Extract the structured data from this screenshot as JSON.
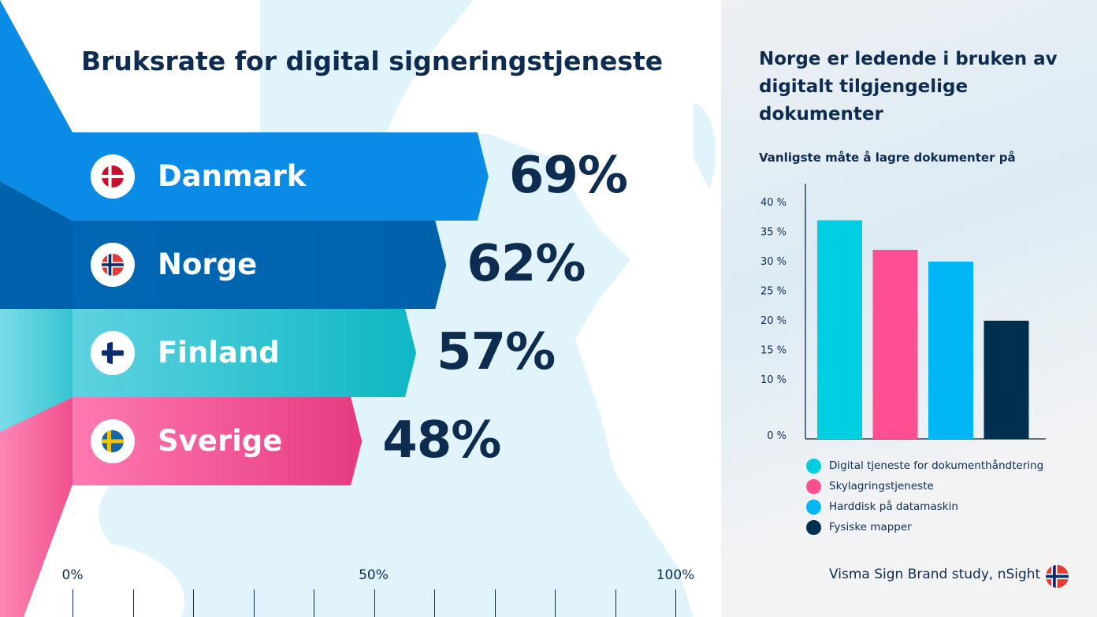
{
  "left": {
    "title": "Bruksrate for digital signeringstjeneste",
    "axis_ticks": [
      "0%",
      "50%",
      "100%"
    ],
    "countries": [
      {
        "name": "Danmark",
        "value": 69,
        "label": "69%",
        "color": "#0a8ce6",
        "flag": "denmark-flag"
      },
      {
        "name": "Norge",
        "value": 62,
        "label": "62%",
        "color": "#0066b3",
        "flag": "norway-flag"
      },
      {
        "name": "Finland",
        "value": 57,
        "label": "57%",
        "color": "#2cc0cc",
        "flag": "finland-flag"
      },
      {
        "name": "Sverige",
        "value": 48,
        "label": "48%",
        "color": "#f0538f",
        "flag": "sweden-flag"
      }
    ]
  },
  "right": {
    "title": "Norge er ledende i bruken av digitalt tilgjengelige dokumenter",
    "source": "Visma Sign Brand study, nSight",
    "source_flag": "norway-flag"
  },
  "chart_data": [
    {
      "type": "bar",
      "title": "Bruksrate for digital signeringstjeneste",
      "categories": [
        "Danmark",
        "Norge",
        "Finland",
        "Sverige"
      ],
      "values": [
        69,
        62,
        57,
        48
      ],
      "data_labels": [
        "69%",
        "62%",
        "57%",
        "48%"
      ],
      "orientation": "horizontal",
      "xlim": [
        0,
        100
      ],
      "x_tick_labels": [
        "0%",
        "50%",
        "100%"
      ]
    },
    {
      "type": "bar",
      "title": "Vanligste måte å lagre dokumenter på",
      "categories": [
        "Digital tjeneste for dokumenthåndtering",
        "Skylagringstjeneste",
        "Harddisk på datamaskin",
        "Fysiske mapper"
      ],
      "values": [
        37,
        32,
        30,
        20
      ],
      "colors": [
        "#00cfe3",
        "#ff4f93",
        "#00b6f5",
        "#00304f"
      ],
      "ylim": [
        0,
        40
      ],
      "y_ticks": [
        0,
        10,
        15,
        20,
        25,
        30,
        35,
        40
      ],
      "y_tick_labels": [
        "0 %",
        "10 %",
        "15 %",
        "20 %",
        "25 %",
        "30 %",
        "35 %",
        "40 %"
      ],
      "legend": "bottom",
      "grid": false
    }
  ]
}
